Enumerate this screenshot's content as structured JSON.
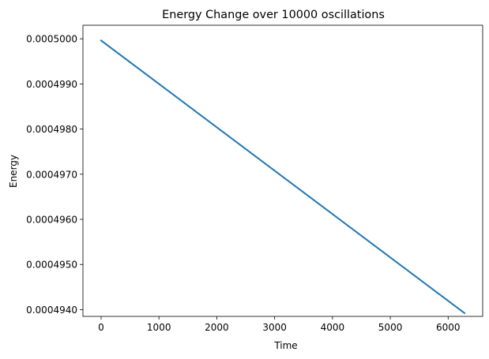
{
  "chart_data": {
    "type": "line",
    "title": "Energy Change over 10000 oscillations",
    "xlabel": "Time",
    "ylabel": "Energy",
    "xlim": [
      -314,
      6597
    ],
    "ylim": [
      0.00049385,
      0.0005003
    ],
    "xticks": [
      0,
      1000,
      2000,
      3000,
      4000,
      5000,
      6000
    ],
    "xtick_labels": [
      "0",
      "1000",
      "2000",
      "3000",
      "4000",
      "5000",
      "6000"
    ],
    "yticks": [
      0.000494,
      0.000495,
      0.000496,
      0.000497,
      0.000498,
      0.000499,
      0.0005
    ],
    "ytick_labels": [
      "0.0004940",
      "0.0004950",
      "0.0004960",
      "0.0004970",
      "0.0004980",
      "0.0004990",
      "0.0005000"
    ],
    "grid": false,
    "series": [
      {
        "color": "#1f77b4",
        "x": [
          0,
          6283
        ],
        "y": [
          0.0004999625,
          0.0004939225
        ]
      }
    ]
  }
}
